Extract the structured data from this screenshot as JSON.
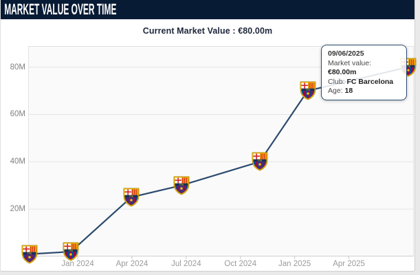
{
  "header": {
    "title": "MARKET VALUE OVER TIME"
  },
  "summary": {
    "current_value_text": "Current Market Value : €80.00m"
  },
  "tooltip": {
    "date": "09/06/2025",
    "rows": [
      {
        "label": "Market value:",
        "value": "€80.00m"
      },
      {
        "label": "Club:",
        "value": "FC Barcelona"
      },
      {
        "label": "Age:",
        "value": "18"
      }
    ]
  },
  "colors": {
    "header_bg": "#081b35",
    "line": "#2b4a6e",
    "tooltip_border": "#2b4a6e",
    "plot_bg": "#fafafa",
    "gridline": "#e4e4e4",
    "tick": "#c9c9c9",
    "crest_gold": "#e8b400",
    "crest_yellow": "#f6c500",
    "crest_blue": "#004d98",
    "crest_garnet": "#a50044",
    "crest_red": "#d3262b",
    "crest_band": "#16305c"
  },
  "chart_data": {
    "type": "line",
    "title": "Market value over time",
    "subtitle": "Current Market Value : €80.00m",
    "marker": "fc-barcelona-crest",
    "grid": "horizontal",
    "legend": "none",
    "x_unit": "months since Jan 2024",
    "y_unit": "€ million",
    "xlim": [
      -2.74,
      18.59
    ],
    "ylim": [
      0,
      88.9
    ],
    "x_ticks": [
      {
        "offset": 0,
        "label": "Jan 2024"
      },
      {
        "offset": 3,
        "label": "Apr 2024"
      },
      {
        "offset": 6,
        "label": "Jul 2024"
      },
      {
        "offset": 9,
        "label": "Oct 2024"
      },
      {
        "offset": 12,
        "label": "Jan 2025"
      },
      {
        "offset": 15,
        "label": "Apr 2025"
      }
    ],
    "y_ticks": [
      {
        "value": 20,
        "label": "20M"
      },
      {
        "value": 40,
        "label": "40M"
      },
      {
        "value": 60,
        "label": "60M"
      },
      {
        "value": 80,
        "label": "80M"
      }
    ],
    "series": [
      {
        "name": "Market value",
        "points": [
          {
            "x_months": -2.66,
            "value_m": 1,
            "date_approx": "Oct 2023"
          },
          {
            "x_months": -0.38,
            "value_m": 2,
            "date_approx": "Dec 2023"
          },
          {
            "x_months": 2.96,
            "value_m": 25,
            "date_approx": "Mar 2024"
          },
          {
            "x_months": 5.73,
            "value_m": 30,
            "date_approx": "Jun 2024"
          },
          {
            "x_months": 10.06,
            "value_m": 40,
            "date_approx": "Nov 2024"
          },
          {
            "x_months": 12.72,
            "value_m": 70,
            "date_approx": "Jan 2025"
          },
          {
            "x_months": 18.27,
            "value_m": 80,
            "date": "09/06/2025"
          }
        ]
      }
    ]
  }
}
